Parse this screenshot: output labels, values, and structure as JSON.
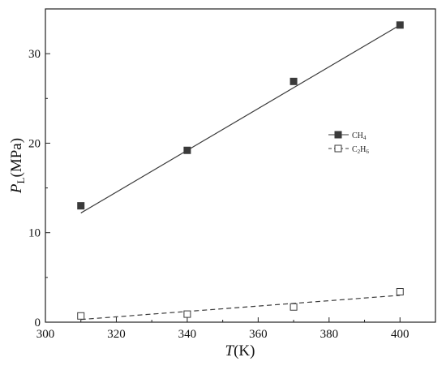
{
  "chart_data": {
    "type": "scatter",
    "x_axis": {
      "label_italic": "T",
      "label_rest": "(K)",
      "range": [
        300,
        410
      ],
      "ticks": [
        300,
        320,
        340,
        360,
        380,
        400
      ],
      "tick_labels": [
        "300",
        "320",
        "340",
        "360",
        "380",
        "400"
      ]
    },
    "y_axis": {
      "label_italic": "P",
      "label_sub": "L",
      "label_rest": "(MPa)",
      "range": [
        0,
        35
      ],
      "ticks": [
        0,
        10,
        20,
        30
      ],
      "tick_labels": [
        "0",
        "10",
        "20",
        "30"
      ]
    },
    "grid": false,
    "legend_position": "right",
    "series": [
      {
        "name": "CH4",
        "legend_main": "CH",
        "legend_sub": "4",
        "marker": "filled-square",
        "line_style": "solid",
        "color": "#3a3a3a",
        "points": [
          {
            "x": 310,
            "y": 13.0
          },
          {
            "x": 340,
            "y": 19.2
          },
          {
            "x": 370,
            "y": 26.9
          },
          {
            "x": 400,
            "y": 33.2
          }
        ],
        "fit": [
          [
            310,
            12.2
          ],
          [
            400,
            33.2
          ]
        ]
      },
      {
        "name": "C2H6",
        "legend_main": "C",
        "legend_sub": "2",
        "legend_main2": "H",
        "legend_sub2": "6",
        "marker": "open-square",
        "line_style": "dashed",
        "color": "#3a3a3a",
        "points": [
          {
            "x": 310,
            "y": 0.7
          },
          {
            "x": 340,
            "y": 0.9
          },
          {
            "x": 370,
            "y": 1.7
          },
          {
            "x": 400,
            "y": 3.4
          }
        ],
        "fit": [
          [
            310,
            0.3
          ],
          [
            400,
            3.0
          ]
        ]
      }
    ]
  }
}
